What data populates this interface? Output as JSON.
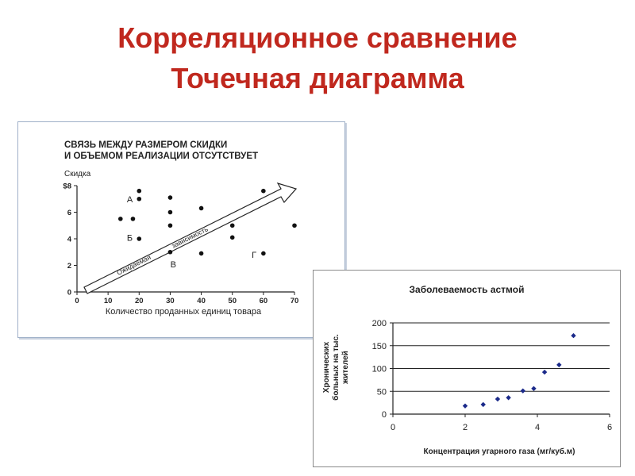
{
  "slide": {
    "title_line1": "Корреляционное сравнение",
    "title_line2": "Точечная диаграмма"
  },
  "chart_data": [
    {
      "type": "scatter",
      "title_lines": [
        "СВЯЗЬ МЕЖДУ РАЗМЕРОМ СКИДКИ",
        "И ОБЪЕМОМ РЕАЛИЗАЦИИ ОТСУТСТВУЕТ"
      ],
      "ylabel": "Скидка",
      "xlabel": "Количество проданных единиц товара",
      "xlim": [
        0,
        70
      ],
      "ylim": [
        0,
        8
      ],
      "xticks": [
        0,
        10,
        20,
        30,
        40,
        50,
        60,
        70
      ],
      "yticks": [
        {
          "v": 0,
          "label": "0"
        },
        {
          "v": 2,
          "label": "2"
        },
        {
          "v": 4,
          "label": "4"
        },
        {
          "v": 6,
          "label": "6"
        },
        {
          "v": 8,
          "label": "$8"
        }
      ],
      "points": [
        {
          "x": 20,
          "y": 7.6
        },
        {
          "x": 20,
          "y": 7.0
        },
        {
          "x": 30,
          "y": 7.1
        },
        {
          "x": 60,
          "y": 7.6
        },
        {
          "x": 14,
          "y": 5.5
        },
        {
          "x": 18,
          "y": 5.5
        },
        {
          "x": 30,
          "y": 6.0
        },
        {
          "x": 40,
          "y": 6.3
        },
        {
          "x": 30,
          "y": 5.0
        },
        {
          "x": 50,
          "y": 5.0
        },
        {
          "x": 70,
          "y": 5.0
        },
        {
          "x": 20,
          "y": 4.0
        },
        {
          "x": 50,
          "y": 4.1
        },
        {
          "x": 30,
          "y": 3.0
        },
        {
          "x": 40,
          "y": 2.9
        },
        {
          "x": 60,
          "y": 2.9
        }
      ],
      "annotations": [
        {
          "text": "А",
          "x": 17,
          "y": 7.0
        },
        {
          "text": "Б",
          "x": 17,
          "y": 4.1
        },
        {
          "text": "В",
          "x": 31,
          "y": 2.1
        },
        {
          "text": "Г",
          "x": 57,
          "y": 2.8
        }
      ],
      "arrow_labels": [
        "Ожидаемая",
        "зависимость"
      ]
    },
    {
      "type": "scatter",
      "title": "Заболеваемость астмой",
      "ylabel_lines": [
        "Хронических",
        "больных на тыс.",
        "жителей"
      ],
      "xlabel": "Концентрация угарного газа (мг/куб.м)",
      "xlim": [
        0,
        6
      ],
      "ylim": [
        0,
        200
      ],
      "xticks": [
        0,
        2,
        4,
        6
      ],
      "yticks": [
        0,
        50,
        100,
        150,
        200
      ],
      "points": [
        {
          "x": 2.0,
          "y": 18
        },
        {
          "x": 2.5,
          "y": 21
        },
        {
          "x": 2.9,
          "y": 33
        },
        {
          "x": 3.2,
          "y": 36
        },
        {
          "x": 3.6,
          "y": 51
        },
        {
          "x": 3.9,
          "y": 56
        },
        {
          "x": 4.2,
          "y": 92
        },
        {
          "x": 4.6,
          "y": 108
        },
        {
          "x": 5.0,
          "y": 172
        }
      ]
    }
  ]
}
